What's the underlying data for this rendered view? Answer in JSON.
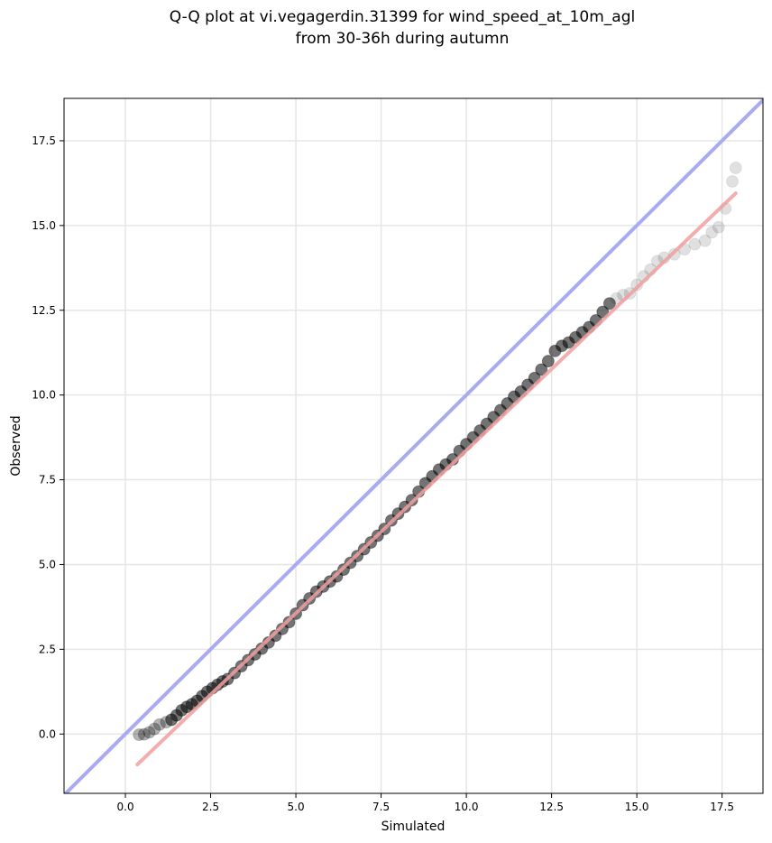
{
  "chart_data": {
    "type": "scatter",
    "title_lines": [
      "Q-Q plot at vi.vegagerdin.31399 for wind_speed_at_10m_agl",
      "from 30-36h during autumn"
    ],
    "xlabel": "Simulated",
    "ylabel": "Observed",
    "xlim": [
      -1.8,
      18.7
    ],
    "ylim": [
      -1.75,
      18.75
    ],
    "xticks": [
      0.0,
      2.5,
      5.0,
      7.5,
      10.0,
      12.5,
      15.0,
      17.5
    ],
    "yticks": [
      0.0,
      2.5,
      5.0,
      7.5,
      10.0,
      12.5,
      15.0,
      17.5
    ],
    "xtick_labels": [
      "0.0",
      "2.5",
      "5.0",
      "7.5",
      "10.0",
      "12.5",
      "15.0",
      "17.5"
    ],
    "ytick_labels": [
      "0.0",
      "2.5",
      "5.0",
      "7.5",
      "10.0",
      "12.5",
      "15.0",
      "17.5"
    ],
    "grid": true,
    "reference_line": {
      "kind": "identity",
      "color": "#aaaaf0"
    },
    "fit_line": {
      "x": [
        0.35,
        17.9
      ],
      "y": [
        -0.9,
        15.95
      ],
      "color": "#f0a0a0"
    },
    "point_color": "#000000",
    "series": [
      {
        "points_x": [
          0.4,
          0.55,
          0.7,
          0.85,
          1.0,
          1.2,
          1.35,
          1.5,
          1.65,
          1.8,
          1.95,
          2.1,
          2.25,
          2.4,
          2.55,
          2.7,
          2.85,
          3.0,
          3.2,
          3.4,
          3.6,
          3.8,
          4.0,
          4.2,
          4.4,
          4.6,
          4.8,
          5.0,
          5.2,
          5.4,
          5.6,
          5.8,
          6.0,
          6.2,
          6.4,
          6.6,
          6.8,
          7.0,
          7.2,
          7.4,
          7.6,
          7.8,
          8.0,
          8.2,
          8.4,
          8.6,
          8.8,
          9.0,
          9.2,
          9.4,
          9.6,
          9.8,
          10.0,
          10.2,
          10.4,
          10.6,
          10.8,
          11.0,
          11.2,
          11.4,
          11.6,
          11.8,
          12.0,
          12.2,
          12.4,
          12.6,
          12.8,
          13.0,
          13.2,
          13.4,
          13.6,
          13.8,
          14.0,
          14.2,
          14.4,
          14.6,
          14.8,
          15.0,
          15.2,
          15.4,
          15.6,
          15.8,
          16.1,
          16.4,
          16.7,
          17.0,
          17.2,
          17.4,
          17.6,
          17.8,
          17.9
        ],
        "points_y": [
          -0.02,
          -0.01,
          0.05,
          0.15,
          0.28,
          0.35,
          0.42,
          0.55,
          0.7,
          0.8,
          0.88,
          0.98,
          1.12,
          1.25,
          1.35,
          1.45,
          1.55,
          1.62,
          1.8,
          2.0,
          2.18,
          2.35,
          2.52,
          2.7,
          2.9,
          3.1,
          3.3,
          3.55,
          3.8,
          4.0,
          4.2,
          4.35,
          4.5,
          4.65,
          4.85,
          5.05,
          5.25,
          5.45,
          5.65,
          5.85,
          6.05,
          6.3,
          6.5,
          6.7,
          6.9,
          7.15,
          7.4,
          7.6,
          7.8,
          7.95,
          8.1,
          8.35,
          8.55,
          8.75,
          8.95,
          9.15,
          9.35,
          9.55,
          9.75,
          9.95,
          10.1,
          10.3,
          10.5,
          10.75,
          11.0,
          11.3,
          11.45,
          11.55,
          11.7,
          11.85,
          12.0,
          12.2,
          12.45,
          12.7,
          12.85,
          12.95,
          13.0,
          13.25,
          13.5,
          13.7,
          13.95,
          14.05,
          14.15,
          14.3,
          14.45,
          14.55,
          14.8,
          14.95,
          15.5,
          16.3,
          16.7
        ]
      }
    ]
  }
}
